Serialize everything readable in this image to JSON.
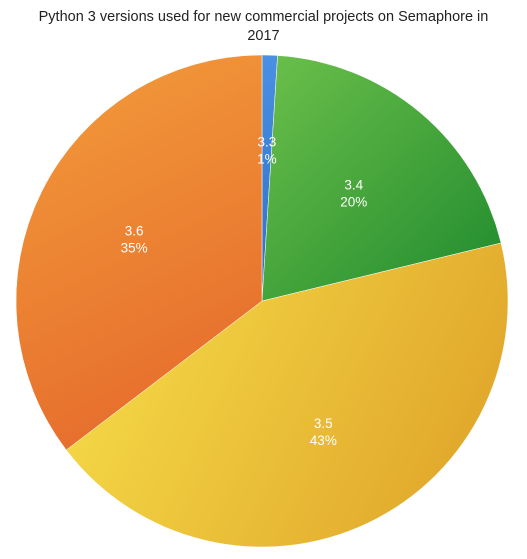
{
  "chart_data": {
    "type": "pie",
    "title": "Python 3 versions used for new commercial projects on Semaphore in 2017",
    "title_lines": [
      "Python 3 versions used for new commercial projects on Semaphore in",
      "2017"
    ],
    "slices": [
      {
        "label": "3.3",
        "value": 1,
        "value_label": "1%",
        "color": "#4a90e2",
        "color_dark": "#2f6fc4"
      },
      {
        "label": "3.4",
        "value": 20,
        "value_label": "20%",
        "color": "#6cc04a",
        "color_dark": "#1f8a2e"
      },
      {
        "label": "3.5",
        "value": 43,
        "value_label": "43%",
        "color": "#f7e04a",
        "color_dark": "#e0a52a"
      },
      {
        "label": "3.6",
        "value": 35,
        "value_label": "35%",
        "color": "#f29a3a",
        "color_dark": "#e4652a"
      }
    ],
    "start_angle_deg": 0,
    "direction": "clockwise",
    "legend": "none"
  }
}
